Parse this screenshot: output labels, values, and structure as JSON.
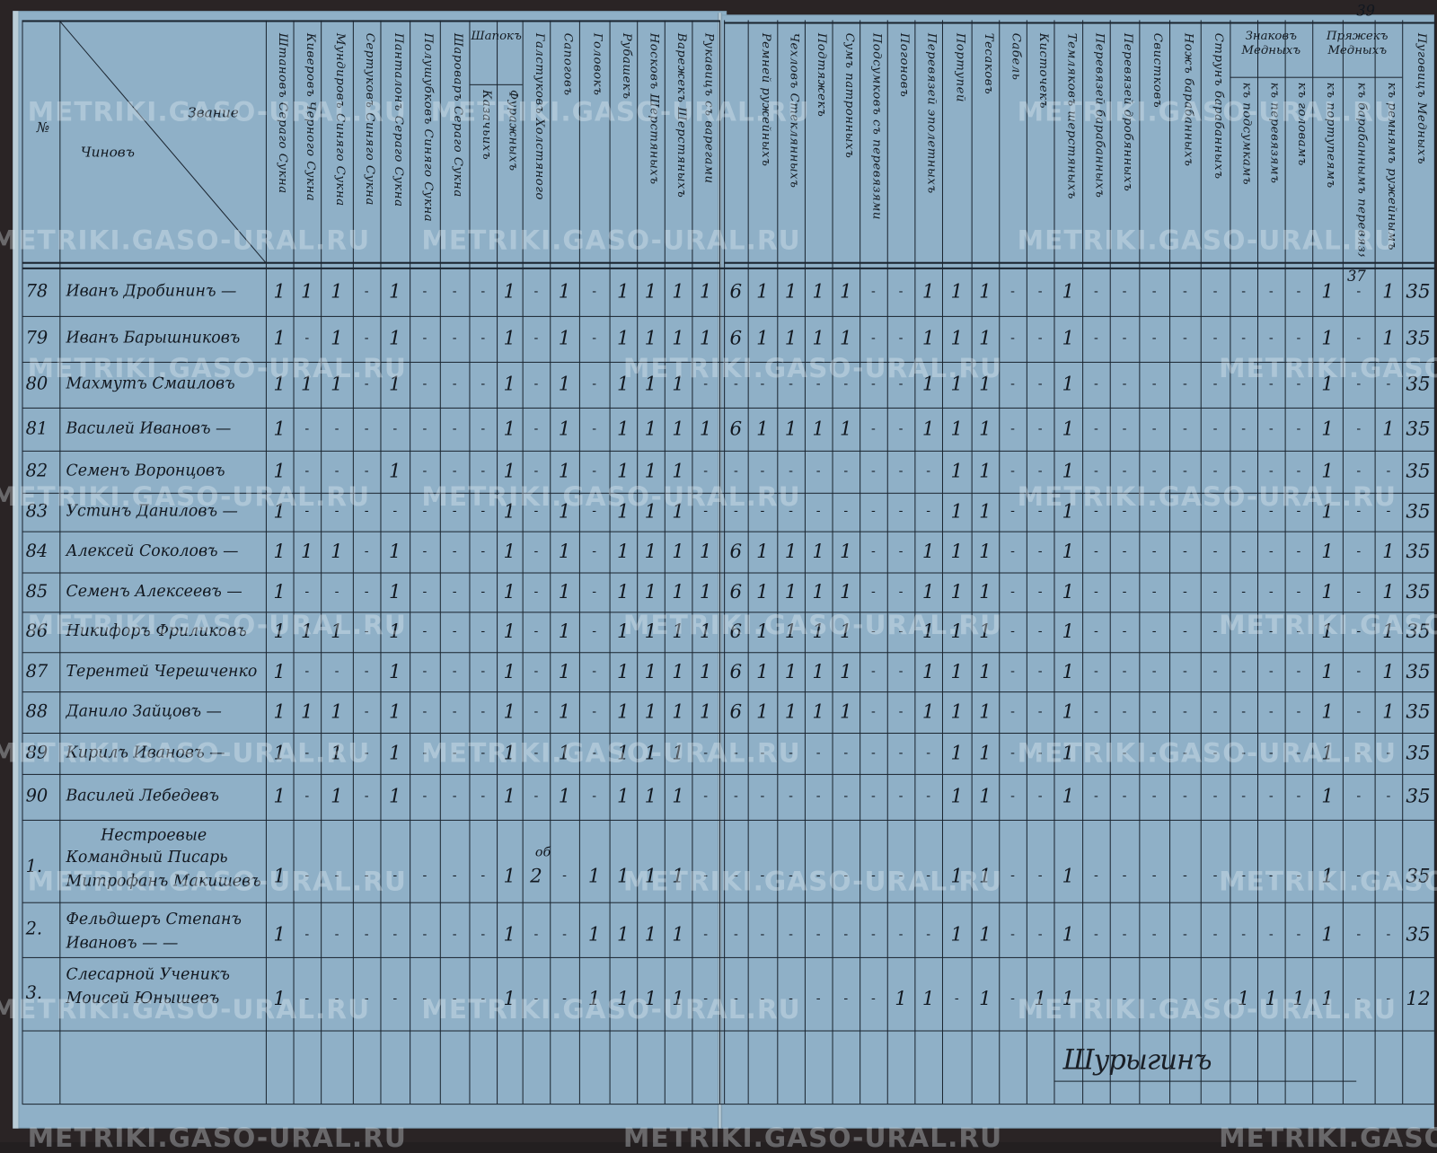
{
  "header": {
    "number_label": "№",
    "rank_label": "Звание",
    "names_label": "Чиновъ",
    "page_number": "39",
    "above_row_note": "37",
    "left_columns": [
      "Штановъ Сераго Сукна",
      "Киверовъ Черного Сукна",
      "Мундировъ Синяго Сукна",
      "Сертуковъ Синяго Сукна",
      "Панталонъ Сераго Сукна",
      "Полушубковъ Синяго Сукна",
      "Шароваръ Сераго Сукна",
      "Казачьихъ",
      "Фуражныхъ",
      "Галстуковъ Холстяного",
      "Сапоговъ",
      "Головокъ",
      "Рубашекъ",
      "Носковъ Шерстяныхъ",
      "Варежекъ Шерстяныхъ",
      "Рукавицъ съ варегами"
    ],
    "left_groups": [
      {
        "label": "Шапокъ",
        "start": 7,
        "span": 2
      }
    ],
    "right_columns": [
      "",
      "Ремней ружейныхъ",
      "Чехловъ Стеклянныхъ",
      "Подтяжекъ",
      "Сумъ патронныхъ",
      "Подсумковъ съ перевязями",
      "Погоновъ",
      "Перевязей эполетныхъ",
      "Портупей",
      "Тесаковъ",
      "Сабель",
      "Кисточекъ",
      "Темляковъ шерстяныхъ",
      "Перевязей барабанныхъ",
      "Перевязей дробянныхъ",
      "Свистковъ",
      "Ножъ барабанныхъ",
      "Струнъ барабанныхъ",
      "къ подсумкамъ",
      "къ перевязямъ",
      "къ головамъ",
      "къ портупеямъ",
      "къ барабаннымъ перевязямъ",
      "къ ремнямъ ружейнымъ",
      "Пуговицъ Медныхъ"
    ],
    "right_groups": [
      {
        "label": "Знаковъ Медныхъ",
        "start": 18,
        "span": 3
      },
      {
        "label": "Пряжекъ Медныхъ",
        "start": 21,
        "span": 3
      }
    ]
  },
  "rows": [
    {
      "num": "78",
      "name": [
        "Иванъ Дробининъ —"
      ],
      "left": [
        "1",
        "1",
        "1",
        "-",
        "1",
        "-",
        "-",
        "-",
        "1",
        "-",
        "1",
        "-",
        "1",
        "1",
        "1",
        "1"
      ],
      "right": [
        "6",
        "1",
        "1",
        "1",
        "1",
        "-",
        "-",
        "1",
        "1",
        "1",
        "-",
        "-",
        "1",
        "-",
        "-",
        "-",
        "-",
        "-",
        "-",
        "-",
        "-",
        "1",
        "-",
        "1",
        "35"
      ]
    },
    {
      "num": "79",
      "name": [
        "Иванъ Барышниковъ"
      ],
      "left": [
        "1",
        "-",
        "1",
        "-",
        "1",
        "-",
        "-",
        "-",
        "1",
        "-",
        "1",
        "-",
        "1",
        "1",
        "1",
        "1"
      ],
      "right": [
        "6",
        "1",
        "1",
        "1",
        "1",
        "-",
        "-",
        "1",
        "1",
        "1",
        "-",
        "-",
        "1",
        "-",
        "-",
        "-",
        "-",
        "-",
        "-",
        "-",
        "-",
        "1",
        "-",
        "1",
        "35"
      ]
    },
    {
      "num": "80",
      "name": [
        "Махмутъ Смаиловъ"
      ],
      "left": [
        "1",
        "1",
        "1",
        "-",
        "1",
        "-",
        "-",
        "-",
        "1",
        "-",
        "1",
        "-",
        "1",
        "1",
        "1",
        "-"
      ],
      "right": [
        "-",
        "-",
        "-",
        "-",
        "-",
        "-",
        "-",
        "1",
        "1",
        "1",
        "-",
        "-",
        "1",
        "-",
        "-",
        "-",
        "-",
        "-",
        "-",
        "-",
        "-",
        "1",
        "-",
        "-",
        "35"
      ]
    },
    {
      "num": "81",
      "name": [
        "Василей Ивановъ —"
      ],
      "left": [
        "1",
        "-",
        "-",
        "-",
        "-",
        "-",
        "-",
        "-",
        "1",
        "-",
        "1",
        "-",
        "1",
        "1",
        "1",
        "1"
      ],
      "right": [
        "6",
        "1",
        "1",
        "1",
        "1",
        "-",
        "-",
        "1",
        "1",
        "1",
        "-",
        "-",
        "1",
        "-",
        "-",
        "-",
        "-",
        "-",
        "-",
        "-",
        "-",
        "1",
        "-",
        "1",
        "35"
      ]
    },
    {
      "num": "82",
      "name": [
        "Семенъ Воронцовъ"
      ],
      "left": [
        "1",
        "-",
        "-",
        "-",
        "1",
        "-",
        "-",
        "-",
        "1",
        "-",
        "1",
        "-",
        "1",
        "1",
        "1",
        "-"
      ],
      "right": [
        "-",
        "-",
        "-",
        "-",
        "-",
        "-",
        "-",
        "-",
        "1",
        "1",
        "-",
        "-",
        "1",
        "-",
        "-",
        "-",
        "-",
        "-",
        "-",
        "-",
        "-",
        "1",
        "-",
        "-",
        "35"
      ]
    },
    {
      "num": "83",
      "name": [
        "Устинъ Даниловъ —"
      ],
      "left": [
        "1",
        "-",
        "-",
        "-",
        "-",
        "-",
        "-",
        "-",
        "1",
        "-",
        "1",
        "-",
        "1",
        "1",
        "1",
        "-"
      ],
      "right": [
        "-",
        "-",
        "-",
        "-",
        "-",
        "-",
        "-",
        "-",
        "1",
        "1",
        "-",
        "-",
        "1",
        "-",
        "-",
        "-",
        "-",
        "-",
        "-",
        "-",
        "-",
        "1",
        "-",
        "-",
        "35"
      ]
    },
    {
      "num": "84",
      "name": [
        "Алексей Соколовъ —"
      ],
      "left": [
        "1",
        "1",
        "1",
        "-",
        "1",
        "-",
        "-",
        "-",
        "1",
        "-",
        "1",
        "-",
        "1",
        "1",
        "1",
        "1"
      ],
      "right": [
        "6",
        "1",
        "1",
        "1",
        "1",
        "-",
        "-",
        "1",
        "1",
        "1",
        "-",
        "-",
        "1",
        "-",
        "-",
        "-",
        "-",
        "-",
        "-",
        "-",
        "-",
        "1",
        "-",
        "1",
        "35"
      ]
    },
    {
      "num": "85",
      "name": [
        "Семенъ Алексеевъ —"
      ],
      "left": [
        "1",
        "-",
        "-",
        "-",
        "1",
        "-",
        "-",
        "-",
        "1",
        "-",
        "1",
        "-",
        "1",
        "1",
        "1",
        "1"
      ],
      "right": [
        "6",
        "1",
        "1",
        "1",
        "1",
        "-",
        "-",
        "1",
        "1",
        "1",
        "-",
        "-",
        "1",
        "-",
        "-",
        "-",
        "-",
        "-",
        "-",
        "-",
        "-",
        "1",
        "-",
        "1",
        "35"
      ]
    },
    {
      "num": "86",
      "name": [
        "Никифоръ Фриликовъ"
      ],
      "left": [
        "1",
        "1",
        "1",
        "-",
        "1",
        "-",
        "-",
        "-",
        "1",
        "-",
        "1",
        "-",
        "1",
        "1",
        "1",
        "1"
      ],
      "right": [
        "6",
        "1",
        "1",
        "1",
        "1",
        "-",
        "-",
        "1",
        "1",
        "1",
        "-",
        "-",
        "1",
        "-",
        "-",
        "-",
        "-",
        "-",
        "-",
        "-",
        "-",
        "1",
        "-",
        "1",
        "35"
      ]
    },
    {
      "num": "87",
      "name": [
        "Терентей Черешченко"
      ],
      "left": [
        "1",
        "-",
        "-",
        "-",
        "1",
        "-",
        "-",
        "-",
        "1",
        "-",
        "1",
        "-",
        "1",
        "1",
        "1",
        "1"
      ],
      "right": [
        "6",
        "1",
        "1",
        "1",
        "1",
        "-",
        "-",
        "1",
        "1",
        "1",
        "-",
        "-",
        "1",
        "-",
        "-",
        "-",
        "-",
        "-",
        "-",
        "-",
        "-",
        "1",
        "-",
        "1",
        "35"
      ]
    },
    {
      "num": "88",
      "name": [
        "Данило Зайцовъ —"
      ],
      "left": [
        "1",
        "1",
        "1",
        "-",
        "1",
        "-",
        "-",
        "-",
        "1",
        "-",
        "1",
        "-",
        "1",
        "1",
        "1",
        "1"
      ],
      "right": [
        "6",
        "1",
        "1",
        "1",
        "1",
        "-",
        "-",
        "1",
        "1",
        "1",
        "-",
        "-",
        "1",
        "-",
        "-",
        "-",
        "-",
        "-",
        "-",
        "-",
        "-",
        "1",
        "-",
        "1",
        "35"
      ]
    },
    {
      "num": "89",
      "name": [
        "Кирилъ Ивановъ —"
      ],
      "left": [
        "1",
        "-",
        "1",
        "-",
        "1",
        "-",
        "-",
        "-",
        "1",
        "-",
        "1",
        "-",
        "1",
        "1",
        "1",
        "-"
      ],
      "right": [
        "-",
        "-",
        "-",
        "-",
        "-",
        "-",
        "-",
        "-",
        "1",
        "1",
        "-",
        "-",
        "1",
        "-",
        "-",
        "-",
        "-",
        "-",
        "-",
        "-",
        "-",
        "1",
        "-",
        "-",
        "35"
      ]
    },
    {
      "num": "90",
      "name": [
        "Василей Лебедевъ"
      ],
      "left": [
        "1",
        "-",
        "1",
        "-",
        "1",
        "-",
        "-",
        "-",
        "1",
        "-",
        "1",
        "-",
        "1",
        "1",
        "1",
        "-"
      ],
      "right": [
        "-",
        "-",
        "-",
        "-",
        "-",
        "-",
        "-",
        "-",
        "1",
        "1",
        "-",
        "-",
        "1",
        "-",
        "-",
        "-",
        "-",
        "-",
        "-",
        "-",
        "-",
        "1",
        "-",
        "-",
        "35"
      ]
    },
    {
      "num": "1.",
      "section": "Нестроевые",
      "name": [
        "Командный Писарь",
        "Митрофанъ Макишевъ"
      ],
      "left": [
        "1",
        "-",
        "-",
        "-",
        "-",
        "-",
        "-",
        "-",
        "1",
        "2",
        "-",
        "1",
        "1",
        "1",
        "1",
        "-"
      ],
      "left_note": {
        "col": 9,
        "text": "об"
      },
      "right": [
        "-",
        "-",
        "-",
        "-",
        "-",
        "-",
        "-",
        "-",
        "1",
        "1",
        "-",
        "-",
        "1",
        "-",
        "-",
        "-",
        "-",
        "-",
        "-",
        "-",
        "-",
        "1",
        "-",
        "-",
        "35"
      ]
    },
    {
      "num": "2.",
      "name": [
        "Фельдшеръ Степанъ",
        "Ивановъ — —"
      ],
      "left": [
        "1",
        "-",
        "-",
        "-",
        "-",
        "-",
        "-",
        "-",
        "1",
        "-",
        "-",
        "1",
        "1",
        "1",
        "1",
        "-"
      ],
      "right": [
        "-",
        "-",
        "-",
        "-",
        "-",
        "-",
        "-",
        "-",
        "1",
        "1",
        "-",
        "-",
        "1",
        "-",
        "-",
        "-",
        "-",
        "-",
        "-",
        "-",
        "-",
        "1",
        "-",
        "-",
        "35"
      ]
    },
    {
      "num": "3.",
      "name": [
        "Слесарной Ученикъ",
        "Моисей Юнышевъ"
      ],
      "left": [
        "1",
        "-",
        "-",
        "-",
        "-",
        "-",
        "-",
        "-",
        "1",
        "-",
        "-",
        "1",
        "1",
        "1",
        "1",
        "-"
      ],
      "right": [
        "-",
        "-",
        "-",
        "-",
        "-",
        "-",
        "1",
        "1",
        "-",
        "1",
        "-",
        "1",
        "1",
        "-",
        "-",
        "-",
        "-",
        "-",
        "1",
        "1",
        "1",
        "1",
        "-",
        "-",
        "12"
      ]
    }
  ],
  "signature": "Шурыгинъ",
  "watermark": "METRIKI.GASO-URAL.RU",
  "colors": {
    "paper": "#8fb0c7",
    "ink": "#121820",
    "background": "#231f20"
  }
}
